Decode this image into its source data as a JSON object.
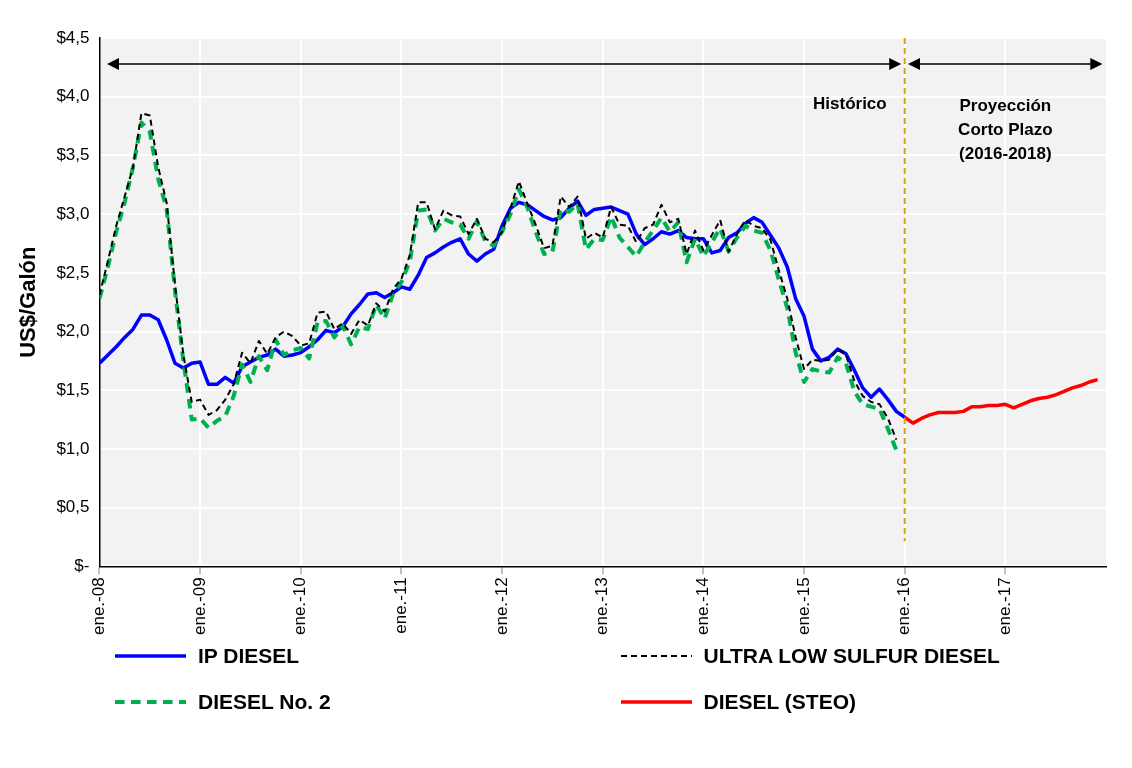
{
  "chart_data": {
    "type": "line",
    "ylabel": "US$/Galón",
    "grid": true,
    "legend": "bottom",
    "x": [
      "2008-01",
      "2008-02",
      "2008-03",
      "2008-04",
      "2008-05",
      "2008-06",
      "2008-07",
      "2008-08",
      "2008-09",
      "2008-10",
      "2008-11",
      "2008-12",
      "2009-01",
      "2009-02",
      "2009-03",
      "2009-04",
      "2009-05",
      "2009-06",
      "2009-07",
      "2009-08",
      "2009-09",
      "2009-10",
      "2009-11",
      "2009-12",
      "2010-01",
      "2010-02",
      "2010-03",
      "2010-04",
      "2010-05",
      "2010-06",
      "2010-07",
      "2010-08",
      "2010-09",
      "2010-10",
      "2010-11",
      "2010-12",
      "2011-01",
      "2011-02",
      "2011-03",
      "2011-04",
      "2011-05",
      "2011-06",
      "2011-07",
      "2011-08",
      "2011-09",
      "2011-10",
      "2011-11",
      "2011-12",
      "2012-01",
      "2012-02",
      "2012-03",
      "2012-04",
      "2012-05",
      "2012-06",
      "2012-07",
      "2012-08",
      "2012-09",
      "2012-10",
      "2012-11",
      "2012-12",
      "2013-01",
      "2013-02",
      "2013-03",
      "2013-04",
      "2013-05",
      "2013-06",
      "2013-07",
      "2013-08",
      "2013-09",
      "2013-10",
      "2013-11",
      "2013-12",
      "2014-01",
      "2014-02",
      "2014-03",
      "2014-04",
      "2014-05",
      "2014-06",
      "2014-07",
      "2014-08",
      "2014-09",
      "2014-10",
      "2014-11",
      "2014-12",
      "2015-01",
      "2015-02",
      "2015-03",
      "2015-04",
      "2015-05",
      "2015-06",
      "2015-07",
      "2015-08",
      "2015-09",
      "2015-10",
      "2015-11",
      "2015-12",
      "2016-01",
      "2016-02",
      "2016-03",
      "2016-04",
      "2016-05",
      "2016-06",
      "2016-07",
      "2016-08",
      "2016-09",
      "2016-10",
      "2016-11",
      "2016-12",
      "2017-01",
      "2017-02",
      "2017-03",
      "2017-04",
      "2017-05",
      "2017-06",
      "2017-07",
      "2017-08",
      "2017-09",
      "2017-10",
      "2017-11",
      "2017-12"
    ],
    "xlim": [
      "2008-01",
      "2018-01"
    ],
    "xticks": [
      {
        "value": "2008-01",
        "label": "ene.-08"
      },
      {
        "value": "2009-01",
        "label": "ene.-09"
      },
      {
        "value": "2010-01",
        "label": "ene.-10"
      },
      {
        "value": "2011-01",
        "label": "ene.-11"
      },
      {
        "value": "2012-01",
        "label": "ene.-12"
      },
      {
        "value": "2013-01",
        "label": "ene.-13"
      },
      {
        "value": "2014-01",
        "label": "ene.-14"
      },
      {
        "value": "2015-01",
        "label": "ene.-15"
      },
      {
        "value": "2016-01",
        "label": "ene.-16"
      },
      {
        "value": "2017-01",
        "label": "ene.-17"
      }
    ],
    "ylim": [
      0,
      4.5
    ],
    "yticks": [
      {
        "value": 0,
        "label": "$-"
      },
      {
        "value": 0.5,
        "label": "$0,5"
      },
      {
        "value": 1,
        "label": "$1,0"
      },
      {
        "value": 1.5,
        "label": "$1,5"
      },
      {
        "value": 2,
        "label": "$2,0"
      },
      {
        "value": 2.5,
        "label": "$2,5"
      },
      {
        "value": 3,
        "label": "$3,0"
      },
      {
        "value": 3.5,
        "label": "$3,5"
      },
      {
        "value": 4,
        "label": "$4,0"
      },
      {
        "value": 4.5,
        "label": "$4,5"
      }
    ],
    "series": [
      {
        "name": "IP DIESEL",
        "color": "#0000ff",
        "line_style": "solid",
        "values": [
          1.73,
          1.8,
          1.87,
          1.95,
          2.02,
          2.14,
          2.14,
          2.1,
          1.93,
          1.73,
          1.69,
          1.73,
          1.74,
          1.55,
          1.55,
          1.61,
          1.56,
          1.7,
          1.74,
          1.78,
          1.8,
          1.85,
          1.79,
          1.8,
          1.82,
          1.87,
          1.93,
          2.01,
          1.99,
          2.04,
          2.15,
          2.23,
          2.32,
          2.33,
          2.29,
          2.33,
          2.38,
          2.36,
          2.48,
          2.63,
          2.67,
          2.72,
          2.76,
          2.79,
          2.66,
          2.6,
          2.66,
          2.7,
          2.9,
          3.05,
          3.1,
          3.08,
          3.03,
          2.98,
          2.95,
          2.97,
          3.05,
          3.11,
          2.99,
          3.04,
          3.05,
          3.06,
          3.03,
          3.0,
          2.83,
          2.74,
          2.79,
          2.85,
          2.83,
          2.86,
          2.8,
          2.79,
          2.79,
          2.67,
          2.69,
          2.8,
          2.84,
          2.92,
          2.97,
          2.93,
          2.82,
          2.71,
          2.55,
          2.28,
          2.13,
          1.85,
          1.75,
          1.78,
          1.85,
          1.81,
          1.67,
          1.52,
          1.44,
          1.51,
          1.42,
          1.32,
          1.27,
          null,
          null,
          null,
          null,
          null,
          null,
          null,
          null,
          null,
          null,
          null,
          null,
          null,
          null,
          null,
          null,
          null,
          null,
          null,
          null,
          null,
          null,
          null
        ]
      },
      {
        "name": "ULTRA LOW SULFUR DIESEL",
        "color": "#000000",
        "line_style": "dashed",
        "values": [
          2.31,
          2.6,
          2.9,
          3.15,
          3.4,
          3.86,
          3.84,
          3.4,
          3.1,
          2.4,
          1.8,
          1.4,
          1.42,
          1.29,
          1.33,
          1.42,
          1.55,
          1.82,
          1.73,
          1.92,
          1.81,
          1.95,
          2.0,
          1.96,
          1.88,
          1.9,
          2.16,
          2.17,
          2.02,
          2.07,
          1.98,
          2.1,
          2.05,
          2.24,
          2.17,
          2.36,
          2.45,
          2.65,
          3.1,
          3.1,
          2.87,
          3.03,
          2.99,
          2.98,
          2.83,
          2.96,
          2.79,
          2.76,
          2.85,
          3.05,
          3.28,
          3.09,
          2.91,
          2.71,
          2.73,
          3.15,
          3.06,
          3.15,
          2.79,
          2.84,
          2.8,
          3.06,
          2.91,
          2.9,
          2.76,
          2.88,
          2.91,
          3.08,
          2.93,
          2.96,
          2.66,
          2.86,
          2.69,
          2.82,
          2.95,
          2.68,
          2.83,
          2.95,
          2.9,
          2.88,
          2.78,
          2.52,
          2.28,
          1.95,
          1.68,
          1.76,
          1.75,
          1.76,
          1.85,
          1.8,
          1.58,
          1.45,
          1.4,
          1.38,
          1.26,
          1.08,
          null,
          null,
          null,
          null,
          null,
          null,
          null,
          null,
          null,
          null,
          null,
          null,
          null,
          null,
          null,
          null,
          null,
          null,
          null,
          null,
          null,
          null,
          null,
          null
        ]
      },
      {
        "name": "DIESEL No. 2",
        "color": "#00b050",
        "line_style": "dashed",
        "values": [
          2.28,
          2.55,
          2.85,
          3.1,
          3.4,
          3.78,
          3.7,
          3.3,
          3.05,
          2.35,
          1.75,
          1.25,
          1.26,
          1.18,
          1.24,
          1.28,
          1.45,
          1.72,
          1.57,
          1.79,
          1.67,
          1.93,
          1.8,
          1.84,
          1.86,
          1.77,
          2.08,
          2.09,
          1.95,
          2.05,
          1.89,
          2.04,
          2.02,
          2.23,
          2.11,
          2.32,
          2.42,
          2.6,
          3.03,
          3.04,
          2.86,
          2.96,
          2.93,
          2.91,
          2.79,
          2.94,
          2.77,
          2.73,
          2.85,
          3.0,
          3.21,
          3.06,
          2.85,
          2.66,
          2.68,
          3.04,
          3.02,
          3.09,
          2.7,
          2.79,
          2.78,
          2.98,
          2.8,
          2.72,
          2.64,
          2.76,
          2.86,
          2.97,
          2.85,
          2.93,
          2.59,
          2.79,
          2.64,
          2.76,
          2.88,
          2.68,
          2.8,
          2.9,
          2.86,
          2.84,
          2.69,
          2.44,
          2.2,
          1.82,
          1.57,
          1.68,
          1.66,
          1.65,
          1.78,
          1.73,
          1.49,
          1.38,
          1.36,
          1.34,
          1.17,
          0.99,
          null,
          null,
          null,
          null,
          null,
          null,
          null,
          null,
          null,
          null,
          null,
          null,
          null,
          null,
          null,
          null,
          null,
          null,
          null,
          null,
          null,
          null,
          null,
          null
        ]
      },
      {
        "name": "DIESEL (STEO)",
        "color": "#ff0000",
        "line_style": "solid",
        "values": [
          null,
          null,
          null,
          null,
          null,
          null,
          null,
          null,
          null,
          null,
          null,
          null,
          null,
          null,
          null,
          null,
          null,
          null,
          null,
          null,
          null,
          null,
          null,
          null,
          null,
          null,
          null,
          null,
          null,
          null,
          null,
          null,
          null,
          null,
          null,
          null,
          null,
          null,
          null,
          null,
          null,
          null,
          null,
          null,
          null,
          null,
          null,
          null,
          null,
          null,
          null,
          null,
          null,
          null,
          null,
          null,
          null,
          null,
          null,
          null,
          null,
          null,
          null,
          null,
          null,
          null,
          null,
          null,
          null,
          null,
          null,
          null,
          null,
          null,
          null,
          null,
          null,
          null,
          null,
          null,
          null,
          null,
          null,
          null,
          null,
          null,
          null,
          null,
          null,
          null,
          null,
          null,
          null,
          null,
          null,
          null,
          1.27,
          1.22,
          1.26,
          1.29,
          1.31,
          1.31,
          1.31,
          1.32,
          1.36,
          1.36,
          1.37,
          1.37,
          1.38,
          1.35,
          1.38,
          1.41,
          1.43,
          1.44,
          1.46,
          1.49,
          1.52,
          1.54,
          1.57,
          1.59
        ]
      }
    ],
    "ref_lines": [
      {
        "axis": "x",
        "value": "2016-01",
        "color": "#d4a017",
        "line_style": "dashed"
      }
    ],
    "annotations": [
      "Histórico",
      "Proyección Corto Plazo (2016-2018)"
    ]
  }
}
